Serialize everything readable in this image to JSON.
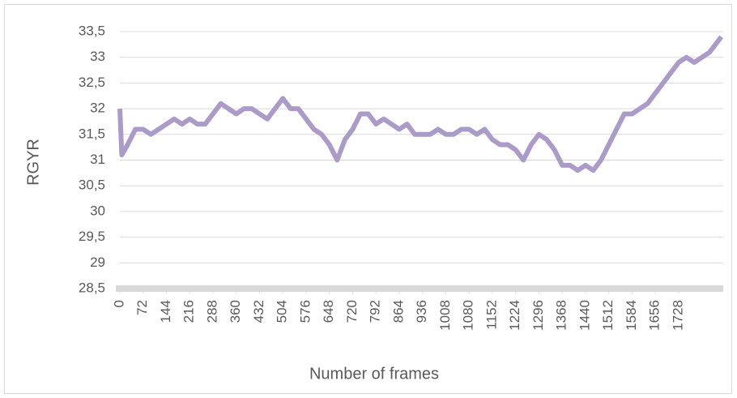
{
  "chart_data": {
    "type": "line",
    "xlabel": "Number of frames",
    "ylabel": "RGYR",
    "x": [
      0,
      6,
      24,
      48,
      72,
      96,
      120,
      144,
      168,
      192,
      216,
      240,
      264,
      288,
      312,
      336,
      360,
      384,
      408,
      432,
      456,
      480,
      504,
      528,
      552,
      576,
      600,
      624,
      648,
      672,
      696,
      720,
      744,
      768,
      792,
      816,
      840,
      864,
      888,
      912,
      936,
      960,
      984,
      1008,
      1032,
      1056,
      1080,
      1104,
      1128,
      1152,
      1176,
      1200,
      1224,
      1248,
      1272,
      1296,
      1320,
      1344,
      1368,
      1392,
      1416,
      1440,
      1464,
      1488,
      1512,
      1536,
      1560,
      1584,
      1608,
      1632,
      1656,
      1680,
      1704,
      1728,
      1752,
      1776,
      1800,
      1824,
      1848,
      1860
    ],
    "series": [
      {
        "name": "RGYR",
        "color": "#ab9bc9",
        "values": [
          32.0,
          31.1,
          31.3,
          31.6,
          31.6,
          31.5,
          31.6,
          31.7,
          31.8,
          31.7,
          31.8,
          31.7,
          31.7,
          31.9,
          32.1,
          32.0,
          31.9,
          32.0,
          32.0,
          31.9,
          31.8,
          32.0,
          32.2,
          32.0,
          32.0,
          31.8,
          31.6,
          31.5,
          31.3,
          31.0,
          31.4,
          31.6,
          31.9,
          31.9,
          31.7,
          31.8,
          31.7,
          31.6,
          31.7,
          31.5,
          31.5,
          31.5,
          31.6,
          31.5,
          31.5,
          31.6,
          31.6,
          31.5,
          31.6,
          31.4,
          31.3,
          31.3,
          31.2,
          31.0,
          31.3,
          31.5,
          31.4,
          31.2,
          30.9,
          30.9,
          30.8,
          30.9,
          30.8,
          31.0,
          31.3,
          31.6,
          31.9,
          31.9,
          32.0,
          32.1,
          32.3,
          32.5,
          32.7,
          32.9,
          33.0,
          32.9,
          33.0,
          33.1,
          33.3,
          33.4
        ]
      }
    ],
    "xlim": [
      0,
      1866
    ],
    "xticks": [
      0,
      72,
      144,
      216,
      288,
      360,
      432,
      504,
      576,
      648,
      720,
      792,
      864,
      936,
      1008,
      1080,
      1152,
      1224,
      1296,
      1368,
      1440,
      1512,
      1584,
      1656,
      1728
    ],
    "ylim": [
      28.5,
      33.5
    ],
    "yticks": [
      {
        "value": 28.5,
        "label": "28,5"
      },
      29,
      {
        "value": 29.5,
        "label": "29,5"
      },
      30,
      {
        "value": 30.5,
        "label": "30,5"
      },
      31,
      {
        "value": 31.5,
        "label": "31,5"
      },
      32,
      {
        "value": 32.5,
        "label": "32,5"
      },
      33,
      {
        "value": 33.5,
        "label": "33,5"
      }
    ],
    "grid": true
  }
}
